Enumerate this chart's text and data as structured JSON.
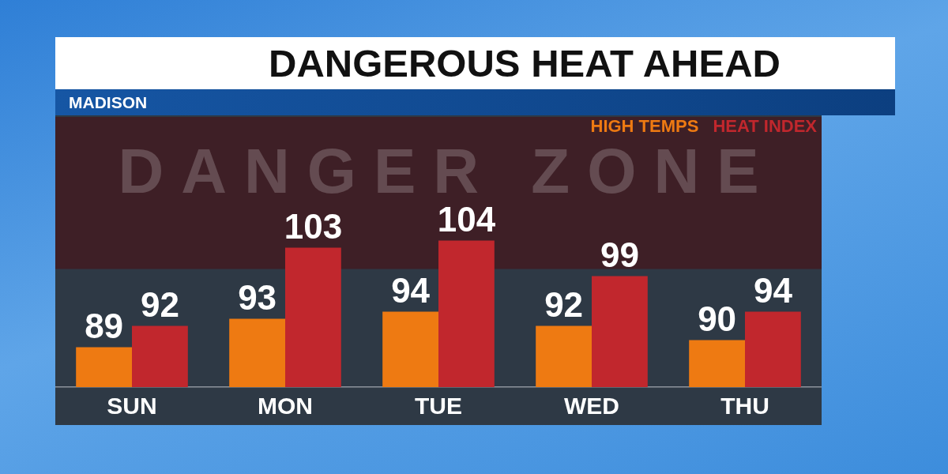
{
  "chart_data": {
    "type": "bar",
    "title": "DANGEROUS HEAT AHEAD",
    "subtitle": "MADISON",
    "categories": [
      "SUN",
      "MON",
      "TUE",
      "WED",
      "THU"
    ],
    "series": [
      {
        "name": "HIGH TEMPS",
        "color": "#ee7a12",
        "values": [
          89,
          93,
          94,
          92,
          90
        ]
      },
      {
        "name": "HEAT INDEX",
        "color": "#c1272d",
        "values": [
          92,
          103,
          104,
          99,
          94
        ]
      }
    ],
    "ylim": [
      83.4,
      121.4
    ],
    "bands": [
      {
        "axis": "y",
        "from": 100,
        "to": 121.4,
        "label": "DANGER ZONE",
        "color": "#3e1f26"
      }
    ],
    "data_labels": true,
    "legend": "top right",
    "tick_labels": "x"
  }
}
